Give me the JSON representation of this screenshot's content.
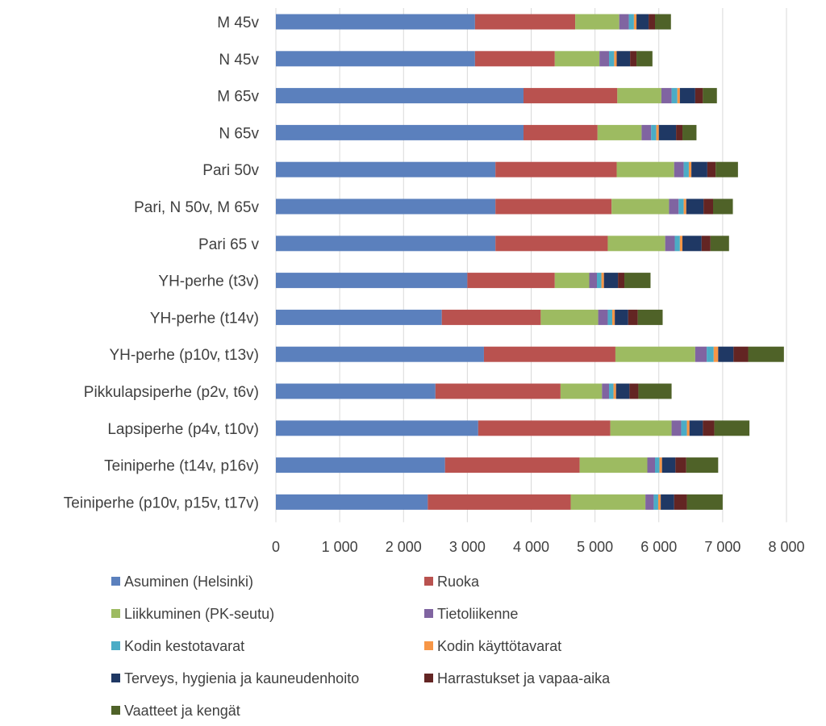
{
  "chart_data": {
    "type": "bar",
    "orientation": "horizontal",
    "stacked": true,
    "categories": [
      "M 45v",
      "N 45v",
      "M 65v",
      "N 65v",
      "Pari 50v",
      "Pari, N 50v, M 65v",
      "Pari 65 v",
      "YH-perhe (t3v)",
      "YH-perhe (t14v)",
      "YH-perhe (p10v, t13v)",
      "Pikkulapsiperhe (p2v, t6v)",
      "Lapsiperhe (p4v, t10v)",
      "Teiniperhe  (t14v, p16v)",
      "Teiniperhe (p10v, p15v, t17v)"
    ],
    "series": [
      {
        "name": "Asuminen (Helsinki)",
        "color": "#5b80bd",
        "values": [
          3120,
          3120,
          3880,
          3880,
          3440,
          3440,
          3440,
          3000,
          2600,
          3260,
          2500,
          3170,
          2650,
          2380
        ]
      },
      {
        "name": "Ruoka",
        "color": "#b9524f",
        "values": [
          1570,
          1250,
          1470,
          1160,
          1900,
          1820,
          1760,
          1370,
          1550,
          2060,
          1960,
          2070,
          2110,
          2240
        ]
      },
      {
        "name": "Liikkuminen (PK-seutu)",
        "color": "#9dbb61",
        "values": [
          690,
          700,
          690,
          690,
          900,
          900,
          900,
          540,
          900,
          1250,
          650,
          960,
          1060,
          1170
        ]
      },
      {
        "name": "Tietoliikenne",
        "color": "#8064a1",
        "values": [
          150,
          150,
          160,
          150,
          150,
          150,
          150,
          120,
          150,
          180,
          110,
          150,
          120,
          130
        ]
      },
      {
        "name": "Kodin kestotavarat",
        "color": "#4bacc6",
        "values": [
          80,
          80,
          90,
          80,
          80,
          80,
          80,
          70,
          70,
          110,
          70,
          90,
          70,
          70
        ]
      },
      {
        "name": "Kodin käyttötavarat",
        "color": "#f79646",
        "values": [
          40,
          40,
          40,
          40,
          40,
          40,
          40,
          40,
          40,
          70,
          40,
          40,
          40,
          40
        ]
      },
      {
        "name": "Terveys, hygienia ja kauneudenhoito",
        "color": "#1f3864",
        "values": [
          190,
          210,
          240,
          270,
          250,
          270,
          300,
          220,
          210,
          240,
          210,
          210,
          210,
          210
        ]
      },
      {
        "name": "Harrastukset ja vapaa-aika",
        "color": "#632523",
        "values": [
          100,
          100,
          120,
          100,
          130,
          150,
          140,
          100,
          150,
          230,
          140,
          180,
          170,
          200
        ]
      },
      {
        "name": "Vaatteet ja kengät",
        "color": "#4f6228",
        "values": [
          250,
          250,
          220,
          220,
          350,
          310,
          290,
          410,
          390,
          560,
          520,
          550,
          500,
          560
        ]
      }
    ],
    "xlim": [
      0,
      8000
    ],
    "xticks": [
      0,
      1000,
      2000,
      3000,
      4000,
      5000,
      6000,
      7000,
      8000
    ],
    "xtick_labels": [
      "0",
      "1 000",
      "2 000",
      "3 000",
      "4 000",
      "5 000",
      "6 000",
      "7 000",
      "8 000"
    ],
    "grid": "vertical",
    "legend_position": "bottom"
  }
}
